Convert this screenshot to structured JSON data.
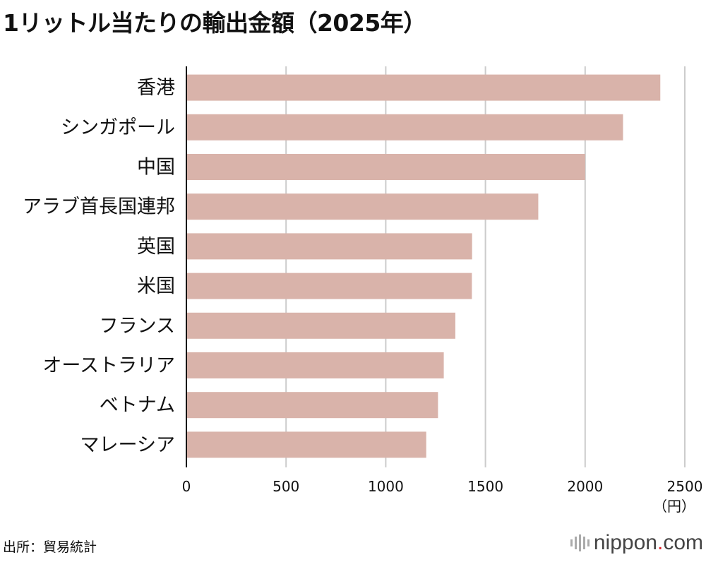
{
  "chart_data": {
    "type": "bar",
    "orientation": "horizontal",
    "title": "1リットル当たりの輸出金額（2025年）",
    "categories": [
      "香港",
      "シンガポール",
      "中国",
      "アラブ首長国連邦",
      "英国",
      "米国",
      "フランス",
      "オーストラリア",
      "ベトナム",
      "マレーシア"
    ],
    "values": [
      2377,
      2190,
      2000,
      1765,
      1433,
      1432,
      1349,
      1291,
      1262,
      1203
    ],
    "xlim": [
      0,
      2500
    ],
    "xticks": [
      0,
      500,
      1000,
      1500,
      2000,
      2500
    ],
    "xlabel": "（円）",
    "grid": true,
    "bar_color": "#d9b3aa",
    "grid_color": "#cccccc"
  },
  "source": "出所：貿易統計",
  "logo": {
    "name": "nippon",
    "dot": ".",
    "tld": "com"
  }
}
